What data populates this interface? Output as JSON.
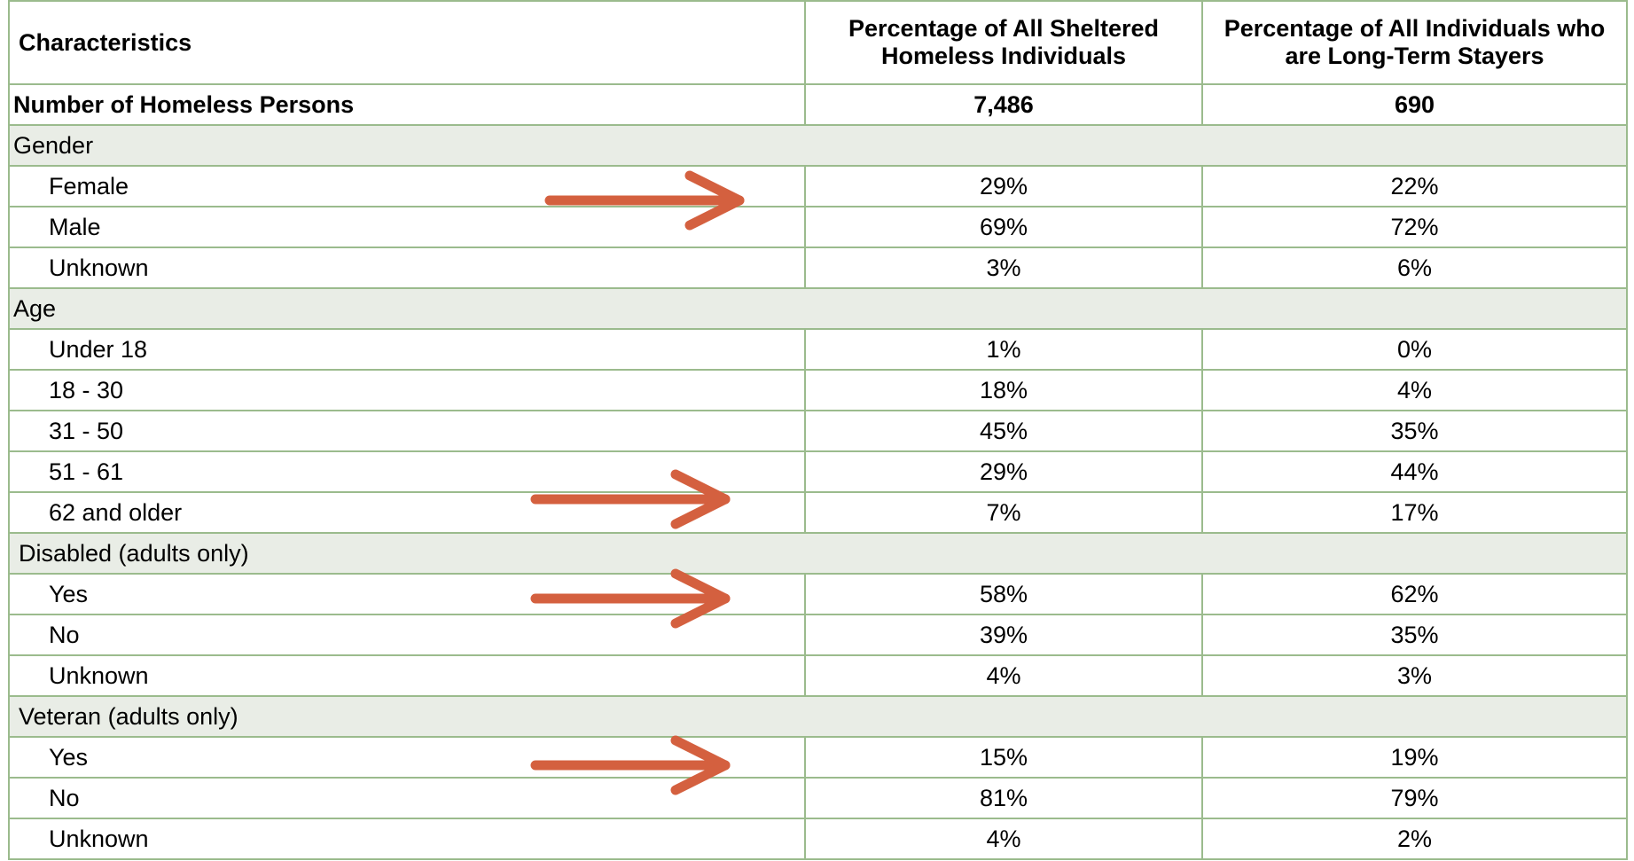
{
  "table": {
    "header": [
      "Characteristics",
      "Percentage of All Sheltered Homeless Individuals",
      "Percentage of All Individuals who are Long-Term Stayers"
    ],
    "total": {
      "label": "Number of Homeless Persons",
      "values": [
        "7,486",
        "690"
      ]
    },
    "groups": [
      {
        "label": "Gender",
        "rows": [
          {
            "label": "Female",
            "values": [
              "29%",
              "22%"
            ]
          },
          {
            "label": "Male",
            "values": [
              "69%",
              "72%"
            ]
          },
          {
            "label": "Unknown",
            "values": [
              "3%",
              "6%"
            ]
          }
        ]
      },
      {
        "label": "Age",
        "rows": [
          {
            "label": "Under 18",
            "values": [
              "1%",
              "0%"
            ]
          },
          {
            "label": "18 - 30",
            "values": [
              "18%",
              "4%"
            ]
          },
          {
            "label": "31 - 50",
            "values": [
              "45%",
              "35%"
            ]
          },
          {
            "label": "51 - 61",
            "values": [
              "29%",
              "44%"
            ]
          },
          {
            "label": "62 and older",
            "values": [
              "7%",
              "17%"
            ]
          }
        ]
      },
      {
        "label": "Disabled (adults only)",
        "rows": [
          {
            "label": "Yes",
            "values": [
              "58%",
              "62%"
            ]
          },
          {
            "label": "No",
            "values": [
              "39%",
              "35%"
            ]
          },
          {
            "label": "Unknown",
            "values": [
              "4%",
              "3%"
            ]
          }
        ]
      },
      {
        "label": "Veteran (adults only)",
        "rows": [
          {
            "label": "Yes",
            "values": [
              "15%",
              "19%"
            ]
          },
          {
            "label": "No",
            "values": [
              "81%",
              "79%"
            ]
          },
          {
            "label": "Unknown",
            "values": [
              "4%",
              "2%"
            ]
          }
        ]
      }
    ]
  }
}
